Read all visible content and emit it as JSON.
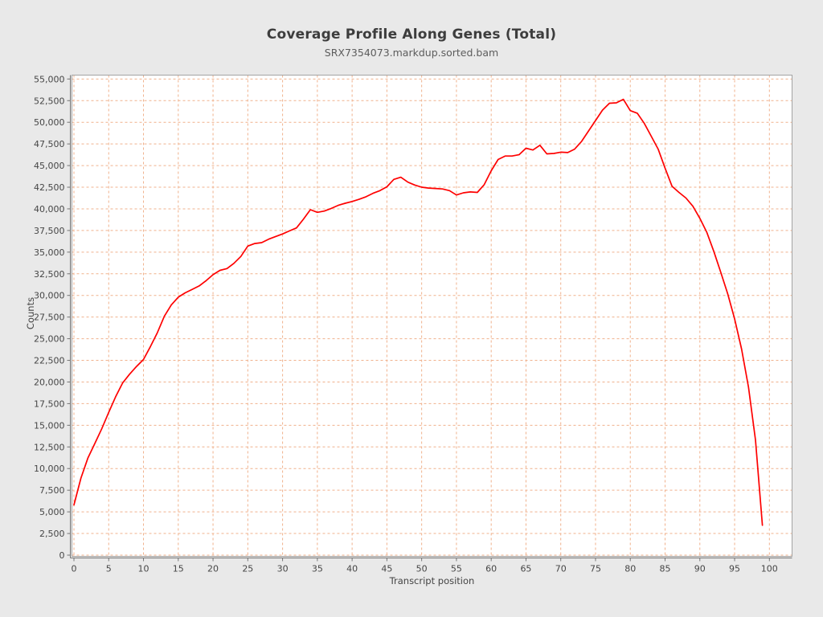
{
  "header": {
    "title": "Coverage Profile Along Genes (Total)",
    "subtitle": "SRX7354073.markdup.sorted.bam"
  },
  "colors": {
    "page_background": "#e9e9e9",
    "plot_background": "#ffffff",
    "grid_color": "#f0b18c",
    "plot_border": "#a3a3a3",
    "axis_color": "#757575",
    "series_color": "#fe0000",
    "title_color": "#3d3d3d",
    "tick_label_color": "#464646"
  },
  "chart_data": {
    "type": "line",
    "title": "Coverage Profile Along Genes (Total)",
    "subtitle": "SRX7354073.markdup.sorted.bam",
    "xlabel": "Transcript position",
    "ylabel": "Counts",
    "xlim": [
      -0.35,
      103.2
    ],
    "ylim": [
      0,
      55450
    ],
    "grid": "dashed orange, horizontal every 2500, vertical every 5",
    "legend": "none",
    "x_tick_values": [
      0,
      5,
      10,
      15,
      20,
      25,
      30,
      35,
      40,
      45,
      50,
      55,
      60,
      65,
      70,
      75,
      80,
      85,
      90,
      95,
      100
    ],
    "x_tick_labels": [
      "0",
      "5",
      "10",
      "15",
      "20",
      "25",
      "30",
      "35",
      "40",
      "45",
      "50",
      "55",
      "60",
      "65",
      "70",
      "75",
      "80",
      "85",
      "90",
      "95",
      "100"
    ],
    "y_tick_values": [
      0,
      2500,
      5000,
      7500,
      10000,
      12500,
      15000,
      17500,
      20000,
      22500,
      25000,
      27500,
      30000,
      32500,
      35000,
      37500,
      40000,
      42500,
      45000,
      47500,
      50000,
      52500,
      55000
    ],
    "y_tick_labels": [
      "0",
      "2,500",
      "5,000",
      "7,500",
      "10,000",
      "12,500",
      "15,000",
      "17,500",
      "20,000",
      "22,500",
      "25,000",
      "27,500",
      "30,000",
      "32,500",
      "35,000",
      "37,500",
      "40,000",
      "42,500",
      "45,000",
      "47,500",
      "50,000",
      "52,500",
      "55,000"
    ],
    "series": [
      {
        "name": "SRX7354073.markdup.sorted.bam",
        "color": "#fe0000",
        "x_start": 0,
        "x_step": 1,
        "values": [
          5800,
          8900,
          11200,
          12900,
          14600,
          16500,
          18300,
          19900,
          20900,
          21800,
          22600,
          24100,
          25700,
          27600,
          28900,
          29800,
          30300,
          30700,
          31100,
          31700,
          32400,
          32900,
          33100,
          33700,
          34500,
          35700,
          36000,
          36100,
          36500,
          36800,
          37100,
          37450,
          37800,
          38800,
          39900,
          39600,
          39750,
          40050,
          40400,
          40650,
          40850,
          41100,
          41400,
          41800,
          42100,
          42550,
          43400,
          43650,
          43100,
          42750,
          42500,
          42400,
          42350,
          42300,
          42100,
          41600,
          41850,
          41950,
          41900,
          42800,
          44400,
          45700,
          46100,
          46100,
          46250,
          47000,
          46800,
          47350,
          46350,
          46400,
          46550,
          46500,
          46900,
          47800,
          49000,
          50200,
          51400,
          52200,
          52250,
          52650,
          51350,
          51050,
          49900,
          48400,
          46900,
          44700,
          42600,
          41900,
          41250,
          40300,
          38900,
          37300,
          35100,
          32700,
          30200,
          27300,
          23800,
          19400,
          13300,
          3450
        ]
      }
    ]
  }
}
